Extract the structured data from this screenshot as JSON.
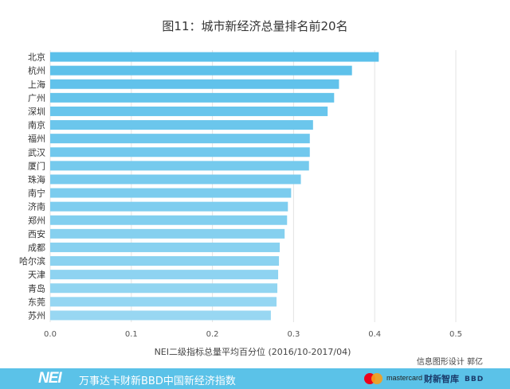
{
  "title": "图11：城市新经济总量排名前20名",
  "chart_data": {
    "type": "bar",
    "orientation": "horizontal",
    "categories": [
      "北京",
      "杭州",
      "上海",
      "广州",
      "深圳",
      "南京",
      "福州",
      "武汉",
      "厦门",
      "珠海",
      "南宁",
      "济南",
      "郑州",
      "西安",
      "成都",
      "哈尔滨",
      "天津",
      "青岛",
      "东莞",
      "苏州"
    ],
    "values": [
      0.405,
      0.372,
      0.356,
      0.35,
      0.342,
      0.324,
      0.32,
      0.32,
      0.319,
      0.309,
      0.297,
      0.293,
      0.292,
      0.289,
      0.283,
      0.282,
      0.281,
      0.28,
      0.279,
      0.272
    ],
    "xlabel": "NEI二级指标总量平均百分位 (2016/10-2017/04)",
    "ylabel": "",
    "xlim": [
      0,
      0.5
    ],
    "xticks": [
      "0.0",
      "0.1",
      "0.2",
      "0.3",
      "0.4",
      "0.5"
    ],
    "grid": true,
    "colors": {
      "bar_top": "#5bc0ea",
      "bar_bottom": "#98d7f2",
      "grid": "#e3e3e3"
    }
  },
  "credit": "信息图形设计 郭亿",
  "footer": {
    "logo": "NEI",
    "text": "万事达卡财新BBD中国新经济指数",
    "mastercard": "mastercard",
    "brand": "财新智库",
    "brand_mark": "BBD",
    "background": "#5bc2e8"
  }
}
